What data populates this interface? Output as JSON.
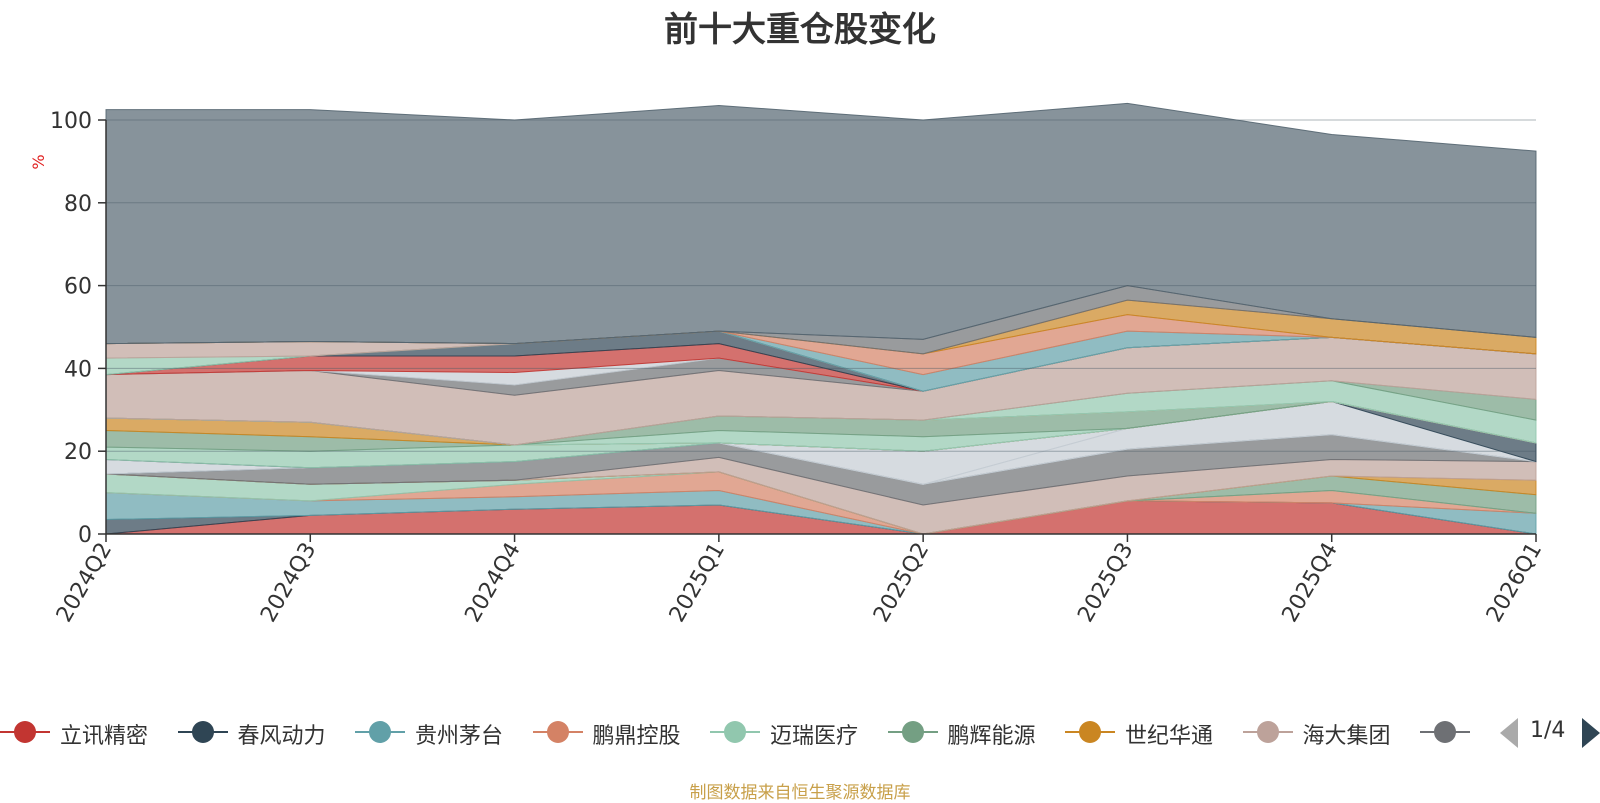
{
  "title": "前十大重仓股变化",
  "footer": "制图数据来自恒生聚源数据库",
  "legend_pager": {
    "text": "1/4"
  },
  "chart_data": {
    "type": "area",
    "stacked": true,
    "title": "前十大重仓股变化",
    "ylabel": "%",
    "ylim": [
      0,
      100
    ],
    "yticks": [
      0,
      20,
      40,
      60,
      80,
      100
    ],
    "x": [
      "2024Q2",
      "2024Q3",
      "2024Q4",
      "2025Q1",
      "2025Q2",
      "2025Q3",
      "2025Q4",
      "2026Q1"
    ],
    "series": [
      {
        "name": "立讯精密",
        "color": "#c23531",
        "values": [
          0,
          4.5,
          6,
          7,
          0,
          8,
          7.5,
          0
        ]
      },
      {
        "name": "春风动力",
        "color": "#2f4554",
        "values": [
          3.5,
          0,
          0,
          0,
          0,
          0,
          0,
          0
        ]
      },
      {
        "name": "贵州茅台",
        "color": "#61a0a8",
        "values": [
          6.5,
          3.5,
          3,
          3.5,
          0,
          0,
          0,
          5
        ]
      },
      {
        "name": "鹏鼎控股",
        "color": "#d48265",
        "values": [
          0,
          0,
          3,
          4.5,
          0,
          0,
          3,
          0
        ]
      },
      {
        "name": "迈瑞医疗",
        "color": "#91c7ae",
        "values": [
          4.5,
          4,
          1,
          0,
          0,
          0,
          0,
          0
        ]
      },
      {
        "name": "鹏辉能源",
        "color": "#749f83",
        "values": [
          0,
          0,
          0,
          0,
          0,
          0,
          3.5,
          4.5
        ]
      },
      {
        "name": "世纪华通",
        "color": "#ca8622",
        "values": [
          0,
          0,
          0,
          0,
          0,
          0,
          0,
          3.5
        ]
      },
      {
        "name": "海大集团",
        "color": "#bda29a",
        "values": [
          0,
          0,
          0,
          3.5,
          7,
          6,
          4,
          4.5
        ]
      },
      {
        "values": [
          0,
          4,
          4.5,
          3.5,
          5,
          6.5,
          6,
          0
        ],
        "color": "#6e7074"
      },
      {
        "values": [
          0,
          0,
          0,
          0,
          0,
          0,
          0,
          0
        ],
        "color": "#546570"
      },
      {
        "values": [
          3.5,
          0,
          0,
          0,
          0,
          0,
          0,
          0
        ],
        "color": "#c4ccd3"
      },
      {
        "values": [
          0,
          0,
          0,
          0,
          0,
          5,
          8,
          0
        ],
        "color": "#c4ccd3"
      },
      {
        "values": [
          0,
          0,
          0,
          0,
          8,
          0,
          0,
          0
        ],
        "color": "#c4ccd3"
      },
      {
        "values": [
          0,
          0,
          0,
          0,
          0,
          0,
          0,
          4.5
        ],
        "color": "#2f4554"
      },
      {
        "values": [
          3,
          4,
          4,
          0,
          0,
          0,
          0,
          0
        ],
        "color": "#91c7ae"
      },
      {
        "values": [
          4,
          3.5,
          0,
          0,
          0,
          0,
          0,
          0
        ],
        "color": "#749f83"
      },
      {
        "values": [
          3,
          3.5,
          0,
          0,
          0,
          0,
          0,
          0
        ],
        "color": "#ca8622"
      },
      {
        "values": [
          0,
          0,
          0,
          0,
          0,
          0,
          0,
          0
        ],
        "color": "#c4ccd3"
      },
      {
        "values": [
          0,
          0,
          0,
          3,
          3.5,
          0,
          0,
          0
        ],
        "color": "#91c7ae"
      },
      {
        "values": [
          0,
          0,
          0,
          3.5,
          4,
          4,
          0,
          0
        ],
        "color": "#749f83"
      },
      {
        "values": [
          0,
          0,
          0,
          0,
          0,
          0,
          0,
          0
        ],
        "color": "#ca8622"
      },
      {
        "values": [
          0,
          0,
          0,
          0,
          0,
          0,
          0,
          0
        ],
        "color": "#c4ccd3"
      },
      {
        "values": [
          0,
          0,
          0,
          0,
          0,
          4.5,
          5,
          5.5
        ],
        "color": "#91c7ae"
      },
      {
        "values": [
          0,
          0,
          0,
          0,
          0,
          0,
          0,
          5
        ],
        "color": "#749f83"
      },
      {
        "values": [
          10.5,
          12.5,
          12,
          11,
          7,
          11,
          10.5,
          11
        ],
        "color": "#bda29a"
      },
      {
        "values": [
          0,
          0,
          2.5,
          3,
          0,
          0,
          0,
          0
        ],
        "color": "#6e7074"
      },
      {
        "values": [
          0,
          0,
          3,
          0,
          0,
          0,
          0,
          0
        ],
        "color": "#c4ccd3"
      },
      {
        "values": [
          0,
          3.5,
          4,
          3.5,
          0,
          0,
          0,
          0
        ],
        "color": "#c23531"
      },
      {
        "values": [
          0,
          0,
          3,
          3,
          0,
          0,
          0,
          0
        ],
        "color": "#2f4554"
      },
      {
        "values": [
          4,
          0,
          0,
          0,
          0,
          0,
          0,
          0
        ],
        "color": "#91c7ae"
      },
      {
        "values": [
          3.5,
          3.5,
          0,
          0,
          0,
          0,
          0,
          0
        ],
        "color": "#bda29a"
      },
      {
        "values": [
          0,
          0,
          0,
          0,
          4,
          4,
          0,
          0
        ],
        "color": "#61a0a8"
      },
      {
        "values": [
          0,
          0,
          0,
          0,
          5,
          4,
          0,
          0
        ],
        "color": "#d48265"
      },
      {
        "values": [
          0,
          0,
          0,
          0,
          0,
          3.5,
          4.5,
          4
        ],
        "color": "#ca8622"
      },
      {
        "values": [
          0,
          0,
          0,
          0,
          3.5,
          3.5,
          0,
          0
        ],
        "color": "#6e7074"
      },
      {
        "values": [
          56.5,
          56,
          54,
          54.5,
          53,
          44,
          44.5,
          45
        ],
        "color": "#546570"
      }
    ]
  }
}
